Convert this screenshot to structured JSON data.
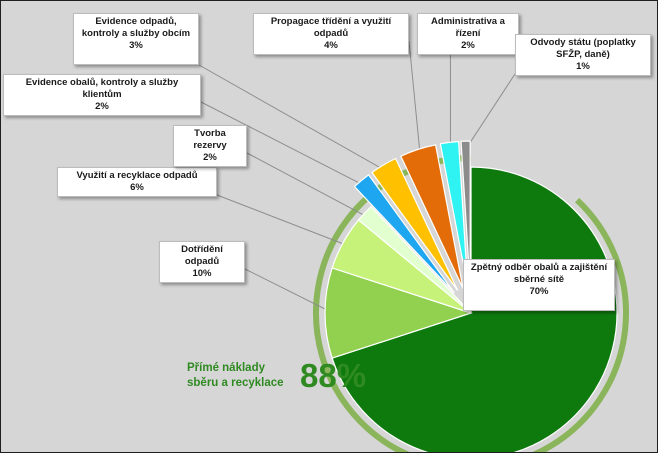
{
  "chart_data": {
    "type": "pie",
    "slices": [
      {
        "label": "Zpětný odběr obalů a zajištění sběrné sítě",
        "percent_label": "70%",
        "value": 70,
        "color": "#0e7a0e",
        "group": "direct"
      },
      {
        "label": "Dotřídění odpadů",
        "percent_label": "10%",
        "value": 10,
        "color": "#92d050",
        "group": "direct"
      },
      {
        "label": "Využití a recyklace odpadů",
        "percent_label": "6%",
        "value": 6,
        "color": "#c6f27a",
        "group": "direct"
      },
      {
        "label": "Tvorba rezervy",
        "percent_label": "2%",
        "value": 2,
        "color": "#e2ffd0",
        "group": "direct"
      },
      {
        "label": "Evidence obalů, kontroly a služby klientům",
        "percent_label": "2%",
        "value": 2,
        "color": "#1ea6f0",
        "group": "other"
      },
      {
        "label": "Evidence odpadů, kontroly a služby obcím",
        "percent_label": "3%",
        "value": 3,
        "color": "#ffc000",
        "group": "other"
      },
      {
        "label": "Propagace třídění a využití odpadů",
        "percent_label": "4%",
        "value": 4,
        "color": "#e36c09",
        "group": "other"
      },
      {
        "label": "Administrativa a řízení",
        "percent_label": "2%",
        "value": 2,
        "color": "#2ff2f2",
        "group": "other"
      },
      {
        "label": "Odvody státu (poplatky SFŽP, daně)",
        "percent_label": "1%",
        "value": 1,
        "color": "#8c8c8c",
        "group": "other"
      }
    ],
    "callout": {
      "text": "Přímé náklady sběru a recyklace",
      "value": "88%"
    },
    "accent_ring_color": "#8ab55a"
  }
}
